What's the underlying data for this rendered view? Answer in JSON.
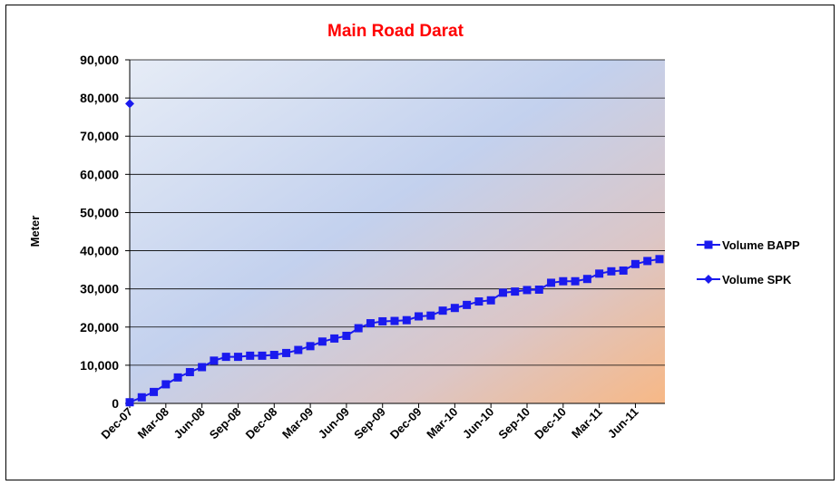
{
  "chart_data": {
    "type": "line",
    "title": "Main Road Darat",
    "y_label": "Meter",
    "categories": [
      "Dec-07",
      null,
      null,
      "Mar-08",
      null,
      null,
      "Jun-08",
      null,
      null,
      "Sep-08",
      null,
      null,
      "Dec-08",
      null,
      null,
      "Mar-09",
      null,
      null,
      "Jun-09",
      null,
      null,
      "Sep-09",
      null,
      null,
      "Dec-09",
      null,
      null,
      "Mar-10",
      null,
      null,
      "Jun-10",
      null,
      null,
      "Sep-10",
      null,
      null,
      "Dec-10",
      null,
      null,
      "Mar-11",
      null,
      null,
      "Jun-11",
      null,
      null
    ],
    "series": [
      {
        "name": "Volume BAPP",
        "color": "#1a1aee",
        "marker": "square",
        "values": [
          300,
          1600,
          3000,
          5000,
          6800,
          8200,
          9500,
          11200,
          12200,
          12200,
          12500,
          12500,
          12700,
          13200,
          14000,
          15000,
          16200,
          17000,
          17700,
          19700,
          21000,
          21500,
          21600,
          21800,
          22800,
          23000,
          24300,
          25000,
          25800,
          26700,
          27000,
          29000,
          29300,
          29700,
          29800,
          31600,
          32000,
          32000,
          32600,
          34000,
          34600,
          34800,
          36500,
          37300,
          37800
        ]
      },
      {
        "name": "Volume SPK",
        "color": "#1a1aee",
        "marker": "diamond",
        "values": [
          78500,
          null,
          null,
          null,
          null,
          null,
          null,
          null,
          null,
          null,
          null,
          null,
          null,
          null,
          null,
          null,
          null,
          null,
          null,
          null,
          null,
          null,
          null,
          null,
          null,
          null,
          null,
          null,
          null,
          null,
          null,
          null,
          null,
          null,
          null,
          null,
          null,
          null,
          null,
          null,
          null,
          null,
          null,
          null,
          null
        ]
      }
    ],
    "ylim": [
      0,
      90000
    ],
    "yticks": [
      {
        "value": 0,
        "label": "0"
      },
      {
        "value": 10000,
        "label": "10,000"
      },
      {
        "value": 20000,
        "label": "20,000"
      },
      {
        "value": 30000,
        "label": "30,000"
      },
      {
        "value": 40000,
        "label": "40,000"
      },
      {
        "value": 50000,
        "label": "50,000"
      },
      {
        "value": 60000,
        "label": "60,000"
      },
      {
        "value": 70000,
        "label": "70,000"
      },
      {
        "value": 80000,
        "label": "80,000"
      },
      {
        "value": 90000,
        "label": "90,000"
      }
    ],
    "grid": true,
    "legend": "right"
  }
}
